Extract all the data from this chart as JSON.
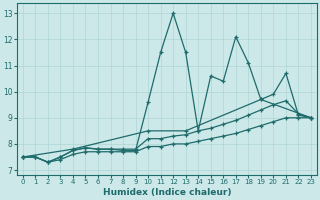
{
  "xlabel": "Humidex (Indice chaleur)",
  "xlim": [
    -0.5,
    23.5
  ],
  "ylim": [
    6.8,
    13.4
  ],
  "xticks": [
    0,
    1,
    2,
    3,
    4,
    5,
    6,
    7,
    8,
    9,
    10,
    11,
    12,
    13,
    14,
    15,
    16,
    17,
    18,
    19,
    20,
    21,
    22,
    23
  ],
  "yticks": [
    7,
    8,
    9,
    10,
    11,
    12,
    13
  ],
  "bg_color": "#cce8e8",
  "line_color": "#1f6b6b",
  "grid_color": "#aed4d4",
  "series": [
    {
      "x": [
        0,
        1,
        2,
        3,
        4,
        5,
        6,
        7,
        8,
        9,
        10,
        11,
        12,
        13,
        14,
        15,
        16,
        17,
        18,
        19,
        20,
        21,
        22,
        23
      ],
      "y": [
        7.5,
        7.5,
        7.3,
        7.4,
        7.6,
        7.7,
        7.7,
        7.7,
        7.7,
        7.7,
        7.9,
        7.9,
        8.0,
        8.0,
        8.1,
        8.2,
        8.3,
        8.4,
        8.55,
        8.7,
        8.85,
        9.0,
        9.0,
        9.0
      ]
    },
    {
      "x": [
        0,
        1,
        2,
        3,
        4,
        5,
        6,
        7,
        8,
        9,
        10,
        11,
        12,
        13,
        14,
        15,
        16,
        17,
        18,
        19,
        20,
        21,
        22,
        23
      ],
      "y": [
        7.5,
        7.5,
        7.3,
        7.5,
        7.75,
        7.85,
        7.8,
        7.8,
        7.8,
        7.8,
        8.2,
        8.2,
        8.3,
        8.35,
        8.5,
        8.6,
        8.75,
        8.9,
        9.1,
        9.3,
        9.5,
        9.65,
        9.15,
        9.0
      ]
    },
    {
      "x": [
        0,
        4,
        10,
        13,
        19,
        23
      ],
      "y": [
        7.5,
        7.8,
        8.5,
        8.5,
        9.7,
        9.0
      ]
    },
    {
      "x": [
        0,
        1,
        2,
        3,
        4,
        5,
        6,
        7,
        8,
        9,
        10,
        11,
        12,
        13,
        14,
        15,
        16,
        17,
        18,
        19,
        20,
        21,
        22,
        23
      ],
      "y": [
        7.5,
        7.5,
        7.3,
        7.5,
        7.75,
        7.85,
        7.8,
        7.8,
        7.75,
        7.75,
        9.6,
        11.5,
        13.0,
        11.5,
        8.5,
        10.6,
        10.4,
        12.1,
        11.1,
        9.7,
        9.9,
        10.7,
        9.1,
        9.0
      ]
    }
  ]
}
